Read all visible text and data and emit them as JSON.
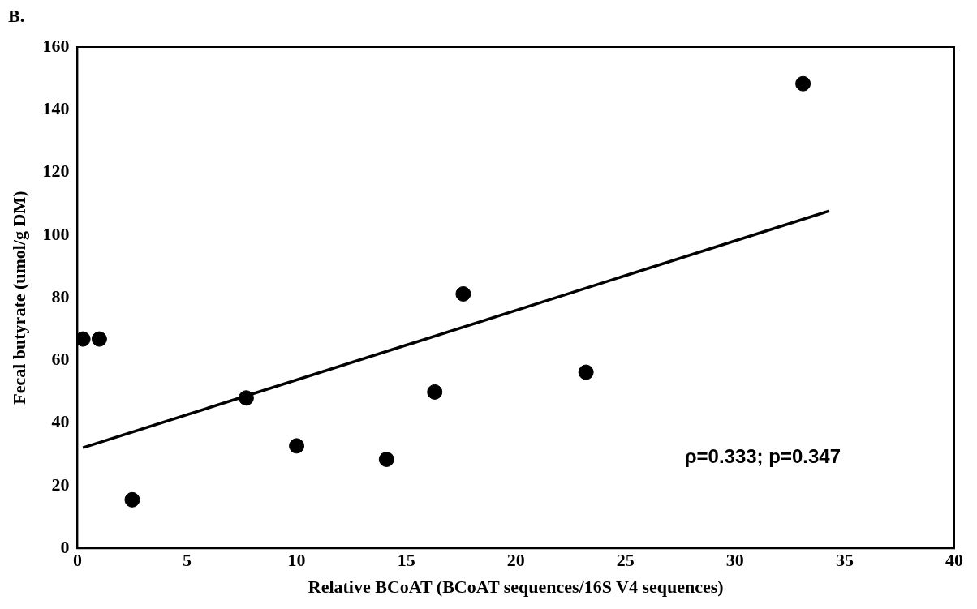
{
  "chart_data": {
    "type": "scatter",
    "title": "B.",
    "xlabel": "Relative BCoAT (BCoAT sequences/16S V4 sequences)",
    "ylabel": "Fecal butyrate (umol/g DM)",
    "x": [
      0.25,
      1.0,
      2.5,
      7.7,
      10.0,
      14.1,
      16.3,
      17.6,
      23.2,
      33.1
    ],
    "series": [
      {
        "color": "#000000",
        "marker": "circle",
        "values": [
          66.8,
          66.8,
          15.5,
          48.0,
          32.7,
          28.4,
          49.9,
          81.2,
          56.2,
          148.3
        ]
      },
      {
        "type": "line",
        "marker": "none",
        "color": "#000000",
        "x": [
          0.25,
          34.3
        ],
        "values": [
          32.1,
          107.7
        ]
      }
    ],
    "xlim": [
      0,
      40
    ],
    "xticks": [
      0,
      5,
      10,
      15,
      20,
      25,
      30,
      35,
      40
    ],
    "ylim": [
      0,
      160
    ],
    "yticks": [
      0,
      20,
      40,
      60,
      80,
      100,
      120,
      140,
      160
    ],
    "annotations": [
      "ρ=0.333; p=0.347"
    ],
    "grid": false,
    "legend": false
  }
}
